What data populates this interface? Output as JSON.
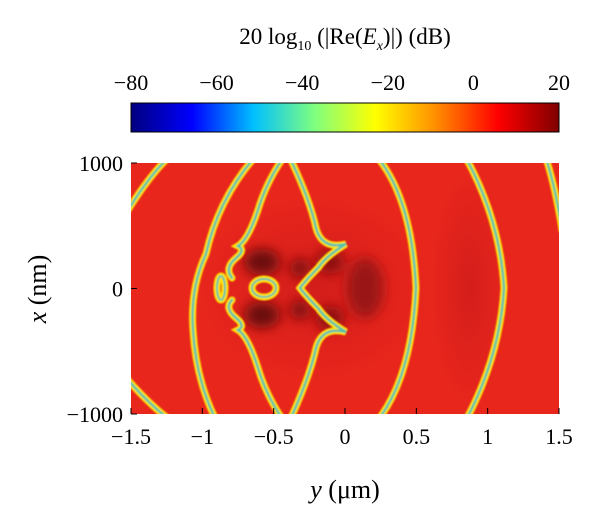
{
  "chart_data": {
    "type": "heatmap",
    "colorbar": {
      "title_prefix": "20 log",
      "title_sub": "10",
      "title_open": " (|Re(",
      "title_var": "E",
      "title_var_sub": "x",
      "title_close": ")|) (dB)",
      "range": [
        -80,
        20
      ],
      "ticks": [
        -80,
        -60,
        -40,
        -20,
        0,
        20
      ],
      "tick_labels": [
        "−80",
        "−60",
        "−40",
        "−20",
        "0",
        "20"
      ],
      "colormap": [
        "#00007f",
        "#0000ff",
        "#00bfff",
        "#7fff7f",
        "#ffff00",
        "#ff8c00",
        "#ff0000",
        "#7f0000"
      ]
    },
    "x_axis": {
      "label_var": "y",
      "label_unit": " (μm)",
      "range": [
        -1.5,
        1.5
      ],
      "ticks": [
        -1.5,
        -1,
        -0.5,
        0,
        0.5,
        1,
        1.5
      ],
      "tick_labels": [
        "−1.5",
        "−1",
        "−0.5",
        "0",
        "0.5",
        "1",
        "1.5"
      ]
    },
    "y_axis": {
      "label_var": "x",
      "label_unit": " (nm)",
      "range": [
        -1000,
        1000
      ],
      "ticks": [
        -1000,
        0,
        1000
      ],
      "tick_labels": [
        "−1000",
        "0",
        "1000"
      ]
    },
    "field_colors": {
      "base": "#e8261c",
      "ring_edge": "#ffe100",
      "ring_core": "#4fc2b0",
      "dark_spot": "#8a1010"
    }
  }
}
